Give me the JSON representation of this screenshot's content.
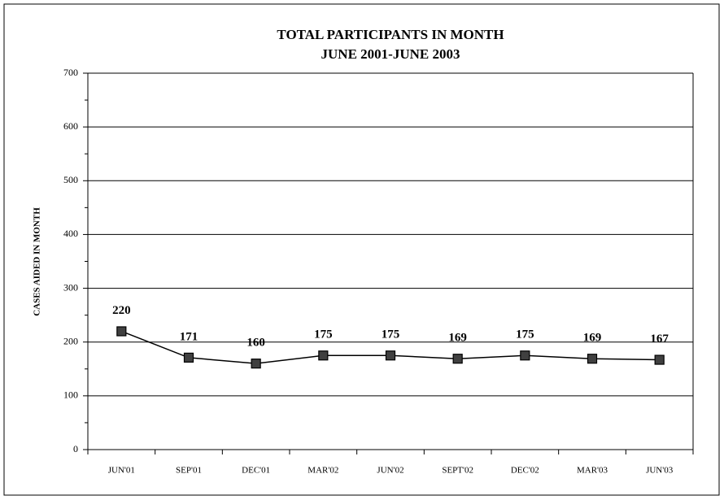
{
  "chart_data": {
    "type": "line",
    "title": [
      "TOTAL PARTICIPANTS IN MONTH",
      "JUNE 2001-JUNE 2003"
    ],
    "y_label": "CASES AIDED IN MONTH",
    "categories": [
      "JUN'01",
      "SEP'01",
      "DEC'01",
      "MAR'02",
      "JUN'02",
      "SEPT'02",
      "DEC'02",
      "MAR'03",
      "JUN'03"
    ],
    "series": [
      {
        "name": "Total participants",
        "color": "#000000",
        "marker_color": "#404040",
        "values": [
          220,
          171,
          160,
          175,
          175,
          169,
          175,
          169,
          167
        ]
      }
    ],
    "ylim": [
      0,
      700
    ],
    "yticks": [
      0,
      100,
      200,
      300,
      400,
      500,
      600,
      700
    ],
    "yminorticks": [
      50,
      150,
      250,
      350,
      450,
      550,
      650
    ],
    "grid": true
  }
}
